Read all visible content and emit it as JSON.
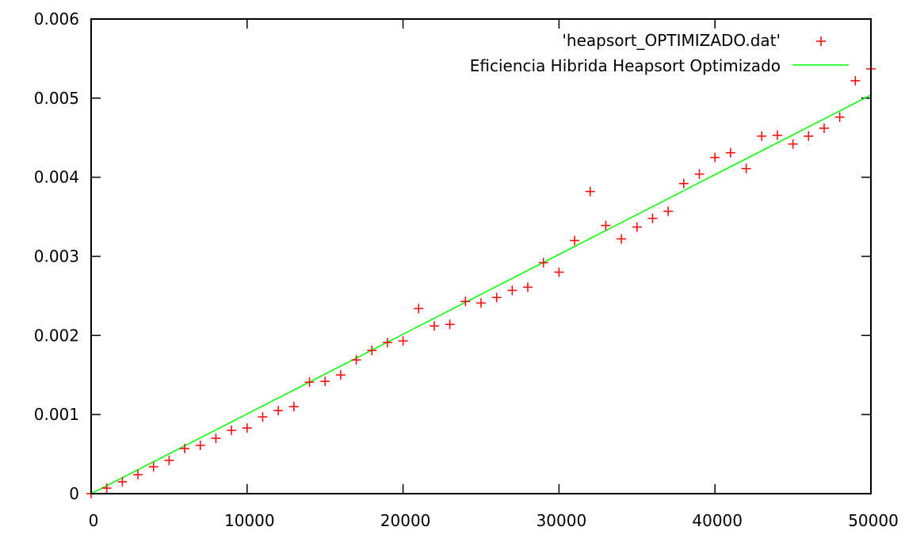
{
  "chart_data": {
    "type": "scatter",
    "title": "",
    "xlabel": "",
    "ylabel": "",
    "xlim": [
      0,
      50000
    ],
    "ylim": [
      0,
      0.006
    ],
    "x_ticks": [
      "0",
      "10000",
      "20000",
      "30000",
      "40000",
      "50000"
    ],
    "x_tick_values": [
      0,
      10000,
      20000,
      30000,
      40000,
      50000
    ],
    "y_ticks": [
      "0",
      "0.001",
      "0.002",
      "0.003",
      "0.004",
      "0.005",
      "0.006"
    ],
    "y_tick_values": [
      0,
      0.001,
      0.002,
      0.003,
      0.004,
      0.005,
      0.006
    ],
    "grid": false,
    "legend_position": "top-right",
    "series": [
      {
        "name": "'heapsort_OPTIMIZADO.dat'",
        "kind": "points",
        "marker": "plus",
        "color": "#ff0000",
        "x": [
          0,
          1000,
          2000,
          3000,
          4000,
          5000,
          6000,
          7000,
          8000,
          9000,
          10000,
          11000,
          12000,
          13000,
          14000,
          15000,
          16000,
          17000,
          18000,
          19000,
          20000,
          21000,
          22000,
          23000,
          24000,
          25000,
          26000,
          27000,
          28000,
          29000,
          30000,
          31000,
          32000,
          33000,
          34000,
          35000,
          36000,
          37000,
          38000,
          39000,
          40000,
          41000,
          42000,
          43000,
          44000,
          45000,
          46000,
          47000,
          48000,
          49000,
          50000
        ],
        "y": [
          0.0,
          7e-05,
          0.00015,
          0.00024,
          0.00034,
          0.00042,
          0.00057,
          0.00061,
          0.0007,
          0.0008,
          0.00083,
          0.00097,
          0.00105,
          0.0011,
          0.00141,
          0.00142,
          0.0015,
          0.00169,
          0.00181,
          0.00191,
          0.00193,
          0.00234,
          0.00212,
          0.00214,
          0.00243,
          0.00241,
          0.00248,
          0.00257,
          0.00261,
          0.00292,
          0.0028,
          0.0032,
          0.00382,
          0.00339,
          0.00322,
          0.00337,
          0.00348,
          0.00357,
          0.00392,
          0.00404,
          0.00425,
          0.00431,
          0.00411,
          0.00452,
          0.00453,
          0.00442,
          0.00452,
          0.00462,
          0.00476,
          0.00522,
          0.00537
        ]
      },
      {
        "name": "Eficiencia Hibrida Heapsort Optimizado",
        "kind": "line",
        "color": "#00ff00",
        "x": [
          0,
          50000
        ],
        "y": [
          0.0,
          0.00504
        ]
      }
    ]
  }
}
